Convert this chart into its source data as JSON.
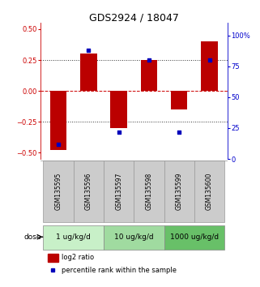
{
  "title": "GDS2924 / 18047",
  "samples": [
    "GSM135595",
    "GSM135596",
    "GSM135597",
    "GSM135598",
    "GSM135599",
    "GSM135600"
  ],
  "log2_ratios": [
    -0.48,
    0.3,
    -0.3,
    0.25,
    -0.15,
    0.4
  ],
  "percentile_ranks": [
    12,
    88,
    22,
    80,
    22,
    80
  ],
  "ylim_left": [
    -0.55,
    0.55
  ],
  "ylim_right": [
    0,
    110
  ],
  "yticks_left": [
    -0.5,
    -0.25,
    0,
    0.25,
    0.5
  ],
  "yticks_right": [
    0,
    25,
    50,
    75,
    100
  ],
  "hlines": [
    -0.25,
    0.25
  ],
  "zero_line_y": 0,
  "dose_groups": [
    {
      "label": "1 ug/kg/d",
      "samples": [
        0,
        1
      ],
      "color": "#c8f0c8"
    },
    {
      "label": "10 ug/kg/d",
      "samples": [
        2,
        3
      ],
      "color": "#a0dba0"
    },
    {
      "label": "1000 ug/kg/d",
      "samples": [
        4,
        5
      ],
      "color": "#68c068"
    }
  ],
  "bar_color": "#bb0000",
  "dot_color": "#0000bb",
  "bar_width": 0.55,
  "zero_line_color": "#cc0000",
  "hline_color": "#333333",
  "title_fontsize": 9,
  "tick_fontsize": 6,
  "sample_fontsize": 5.5,
  "dose_fontsize": 6.5,
  "legend_fontsize": 6,
  "left_tick_color": "#cc0000",
  "right_tick_color": "#0000cc",
  "sample_bg_color": "#cccccc",
  "sample_edge_color": "#999999",
  "dose_label_color": "#000000",
  "dose_edge_color": "#888888"
}
